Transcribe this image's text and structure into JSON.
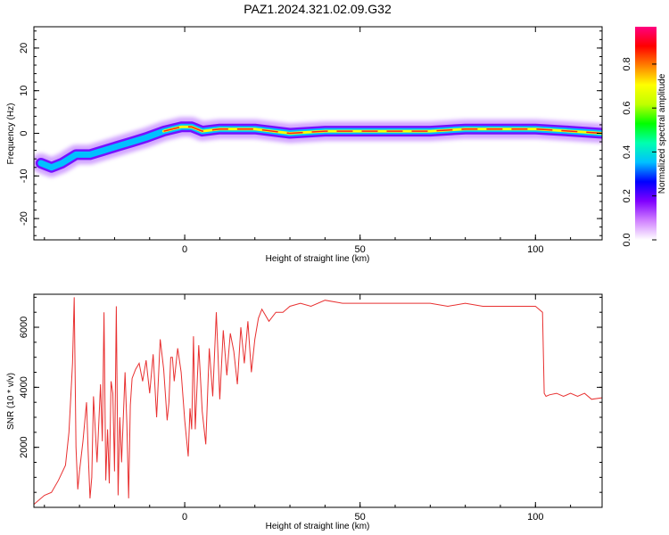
{
  "title": "PAZ1.2024.321.02.09.G32",
  "chart_data": [
    {
      "type": "heatmap",
      "xlabel": "Height of straight line (km)",
      "ylabel": "Frequency (Hz)",
      "xlim": [
        -43,
        119
      ],
      "ylim": [
        -25,
        25
      ],
      "xticks": [
        0,
        50,
        100
      ],
      "yticks": [
        -20,
        -10,
        0,
        10,
        20
      ],
      "colorbar": {
        "label": "Normalized spectral amplitude",
        "range": [
          0,
          0.97
        ],
        "ticks": [
          "0.0",
          "0.2",
          "0.4",
          "0.6",
          "0.8"
        ],
        "tick_values": [
          0,
          0.2,
          0.4,
          0.6,
          0.8
        ],
        "colormap": [
          "#ffffff",
          "#d080ff",
          "#8000ff",
          "#0000ff",
          "#00c0ff",
          "#00ffb0",
          "#00ff00",
          "#c0ff00",
          "#ffff00",
          "#ff8000",
          "#ff0000",
          "#ff0080"
        ]
      },
      "ridge": [
        {
          "x": -41,
          "y": -7
        },
        {
          "x": -38,
          "y": -8
        },
        {
          "x": -35,
          "y": -7
        },
        {
          "x": -31,
          "y": -5
        },
        {
          "x": -27,
          "y": -5
        },
        {
          "x": -23,
          "y": -4
        },
        {
          "x": -19,
          "y": -3
        },
        {
          "x": -15,
          "y": -2
        },
        {
          "x": -11,
          "y": -1
        },
        {
          "x": -6,
          "y": 0.5
        },
        {
          "x": -1,
          "y": 1.5
        },
        {
          "x": 2,
          "y": 1.5
        },
        {
          "x": 5,
          "y": 0.5
        },
        {
          "x": 10,
          "y": 1
        },
        {
          "x": 20,
          "y": 1
        },
        {
          "x": 30,
          "y": 0
        },
        {
          "x": 40,
          "y": 0.5
        },
        {
          "x": 50,
          "y": 0.5
        },
        {
          "x": 60,
          "y": 0.5
        },
        {
          "x": 70,
          "y": 0.5
        },
        {
          "x": 80,
          "y": 1
        },
        {
          "x": 90,
          "y": 1
        },
        {
          "x": 100,
          "y": 1
        },
        {
          "x": 110,
          "y": 0.5
        },
        {
          "x": 119,
          "y": 0
        }
      ]
    },
    {
      "type": "line",
      "xlabel": "Height of straight line (km)",
      "ylabel": "SNR (10 * v/v)",
      "xlim": [
        -43,
        119
      ],
      "ylim": [
        0,
        7100
      ],
      "xticks": [
        0,
        50,
        100
      ],
      "yticks": [
        2000,
        4000,
        6000
      ],
      "color": "#e83030",
      "x": [
        -43,
        -40,
        -38,
        -36,
        -34,
        -33,
        -32,
        -31.5,
        -31,
        -30.5,
        -30,
        -29,
        -28,
        -27.5,
        -27,
        -26.5,
        -26,
        -25,
        -24,
        -23.5,
        -23,
        -22.5,
        -22,
        -21.5,
        -21,
        -20.5,
        -20,
        -19.5,
        -19,
        -18.5,
        -18,
        -17,
        -16.5,
        -16,
        -15.5,
        -15,
        -14,
        -13,
        -12,
        -11,
        -10,
        -9,
        -8,
        -7,
        -6,
        -5,
        -4.5,
        -4,
        -3.5,
        -3,
        -2,
        -1,
        0,
        1,
        1.5,
        2,
        2.5,
        3,
        4,
        5,
        6,
        7,
        8,
        9,
        10,
        11,
        12,
        13,
        14,
        15,
        16,
        17,
        18,
        19,
        20,
        21,
        22,
        24,
        26,
        28,
        30,
        33,
        36,
        40,
        45,
        50,
        55,
        60,
        65,
        70,
        75,
        80,
        85,
        90,
        95,
        100,
        102,
        102.5,
        103,
        104,
        106,
        108,
        110,
        112,
        114,
        116,
        119
      ],
      "y": [
        100,
        400,
        500,
        900,
        1400,
        2500,
        4800,
        7000,
        2000,
        600,
        1200,
        2200,
        3500,
        1800,
        300,
        1000,
        3700,
        1500,
        4100,
        2200,
        6500,
        900,
        2600,
        800,
        4200,
        3800,
        1200,
        6700,
        400,
        3000,
        1500,
        4500,
        2800,
        300,
        3400,
        4300,
        4600,
        4800,
        4200,
        4900,
        3800,
        5100,
        3000,
        5600,
        4600,
        2900,
        3500,
        5000,
        5000,
        4200,
        5300,
        4500,
        2900,
        1700,
        3300,
        2600,
        5700,
        2600,
        5400,
        3200,
        2100,
        5300,
        3700,
        6500,
        3600,
        5900,
        4400,
        5800,
        5200,
        4100,
        6000,
        4800,
        6200,
        4500,
        5600,
        6300,
        6600,
        6200,
        6500,
        6500,
        6700,
        6800,
        6700,
        6900,
        6800,
        6800,
        6800,
        6800,
        6800,
        6800,
        6700,
        6800,
        6700,
        6700,
        6700,
        6700,
        6500,
        3800,
        3700,
        3750,
        3800,
        3700,
        3800,
        3700,
        3800,
        3600,
        3650
      ]
    }
  ]
}
